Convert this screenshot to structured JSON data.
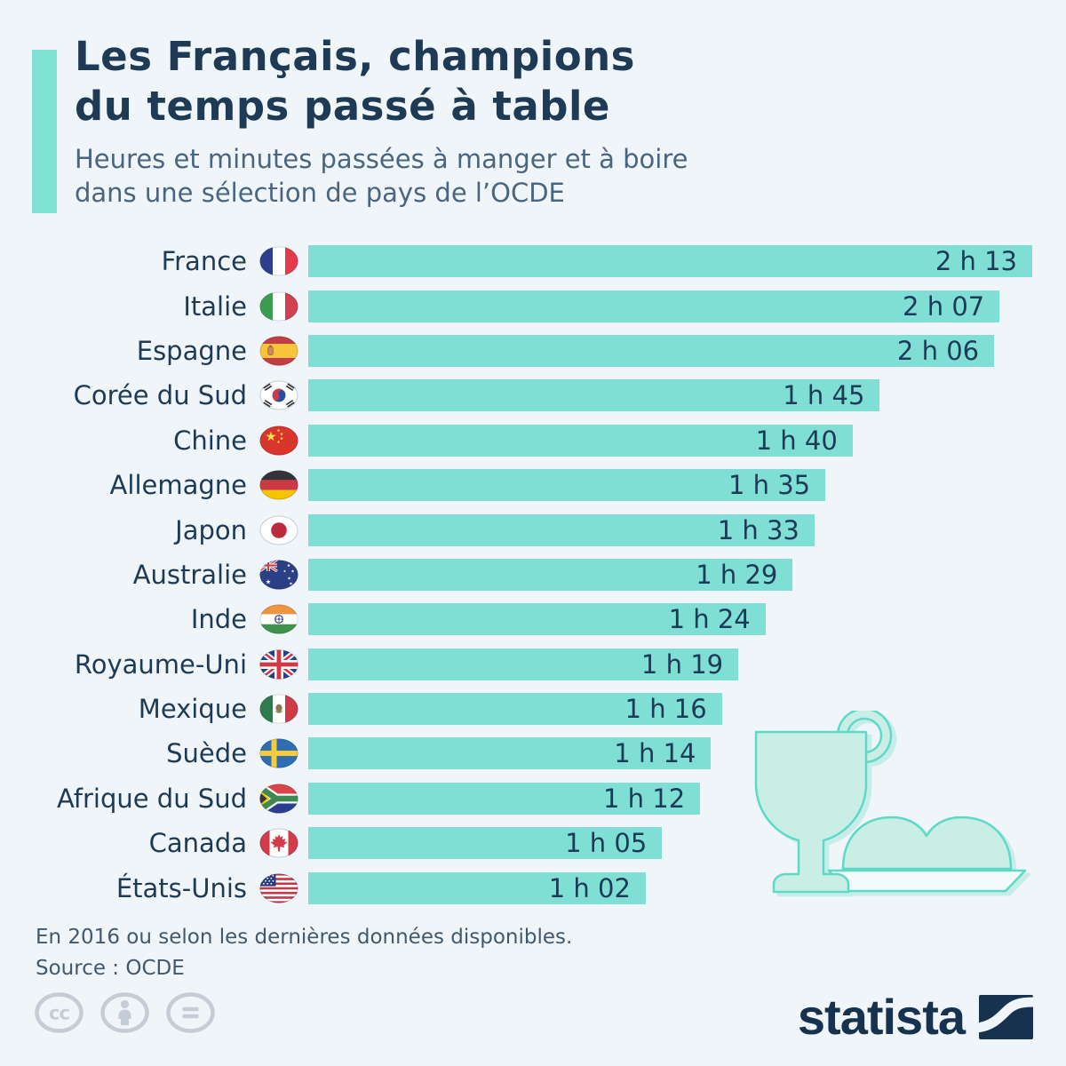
{
  "page": {
    "background": "#F0F5F9"
  },
  "title": {
    "line1": "Les Français, champions",
    "line2": "du temps passé à table"
  },
  "subtitle": {
    "line1": "Heures et minutes passées à manger et à boire",
    "line2": "dans une sélection de pays de l’OCDE"
  },
  "chart_data": {
    "type": "bar",
    "orientation": "horizontal",
    "title": "Les Français, champions du temps passé à table",
    "subtitle": "Heures et minutes passées à manger et à boire dans une sélection de pays de l’OCDE",
    "bar_color": "#7FDFD5",
    "max_minutes": 133,
    "rows": [
      {
        "country": "France",
        "flag": "france",
        "value_label": "2 h 13",
        "minutes": 133
      },
      {
        "country": "Italie",
        "flag": "italie",
        "value_label": "2 h 07",
        "minutes": 127
      },
      {
        "country": "Espagne",
        "flag": "espagne",
        "value_label": "2 h 06",
        "minutes": 126
      },
      {
        "country": "Corée du Sud",
        "flag": "coree-du-sud",
        "value_label": "1 h 45",
        "minutes": 105
      },
      {
        "country": "Chine",
        "flag": "chine",
        "value_label": "1 h 40",
        "minutes": 100
      },
      {
        "country": "Allemagne",
        "flag": "allemagne",
        "value_label": "1 h 35",
        "minutes": 95
      },
      {
        "country": "Japon",
        "flag": "japon",
        "value_label": "1 h 33",
        "minutes": 93
      },
      {
        "country": "Australie",
        "flag": "australie",
        "value_label": "1 h 29",
        "minutes": 89
      },
      {
        "country": "Inde",
        "flag": "inde",
        "value_label": "1 h 24",
        "minutes": 84
      },
      {
        "country": "Royaume-Uni",
        "flag": "royaume-uni",
        "value_label": "1 h 19",
        "minutes": 79
      },
      {
        "country": "Mexique",
        "flag": "mexique",
        "value_label": "1 h 16",
        "minutes": 76
      },
      {
        "country": "Suède",
        "flag": "suede",
        "value_label": "1 h 14",
        "minutes": 74
      },
      {
        "country": "Afrique du Sud",
        "flag": "afrique-du-sud",
        "value_label": "1 h 12",
        "minutes": 72
      },
      {
        "country": "Canada",
        "flag": "canada",
        "value_label": "1 h 05",
        "minutes": 65
      },
      {
        "country": "États-Unis",
        "flag": "etats-unis",
        "value_label": "1 h 02",
        "minutes": 62
      }
    ]
  },
  "footer": {
    "note": "En 2016 ou selon les dernières données disponibles.",
    "source": "Source : OCDE"
  },
  "branding": {
    "wordmark": "statista"
  },
  "license": {
    "icons": [
      "cc",
      "by",
      "nd"
    ]
  },
  "colors": {
    "background": "#F0F5F9",
    "bar": "#7FDFD5",
    "accent_bar": "#7EE2D2",
    "title_text": "#1E3A55",
    "subtitle_text": "#4A6580",
    "value_text": "#1C3B57",
    "footer_text": "#42586D",
    "illustration_fill": "#C9EEE6",
    "illustration_stroke": "#5ED9C7",
    "logo_navy": "#16324F",
    "license_gray": "#C4CDD6"
  }
}
